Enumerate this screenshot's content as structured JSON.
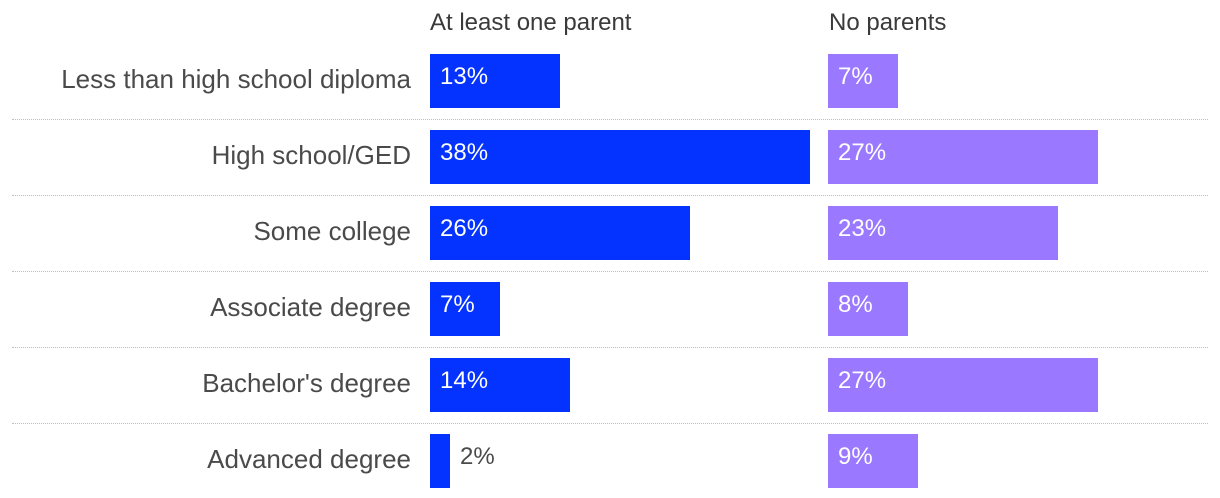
{
  "chart_data": {
    "type": "bar",
    "orientation": "horizontal",
    "layout": "small-multiples",
    "categories": [
      "Less than high school diploma",
      "High school/GED",
      "Some college",
      "Associate degree",
      "Bachelor's degree",
      "Advanced degree"
    ],
    "series": [
      {
        "name": "At least one parent",
        "color": "#0433ff",
        "values": [
          13,
          38,
          26,
          7,
          14,
          2
        ],
        "labels": [
          "13%",
          "38%",
          "26%",
          "7%",
          "14%",
          "2%"
        ]
      },
      {
        "name": "No parents",
        "color": "#9a78ff",
        "values": [
          7,
          27,
          23,
          8,
          27,
          9
        ],
        "labels": [
          "7%",
          "27%",
          "23%",
          "8%",
          "27%",
          "9%"
        ]
      }
    ],
    "value_unit": "%",
    "grid": false,
    "legend": "column headers"
  }
}
